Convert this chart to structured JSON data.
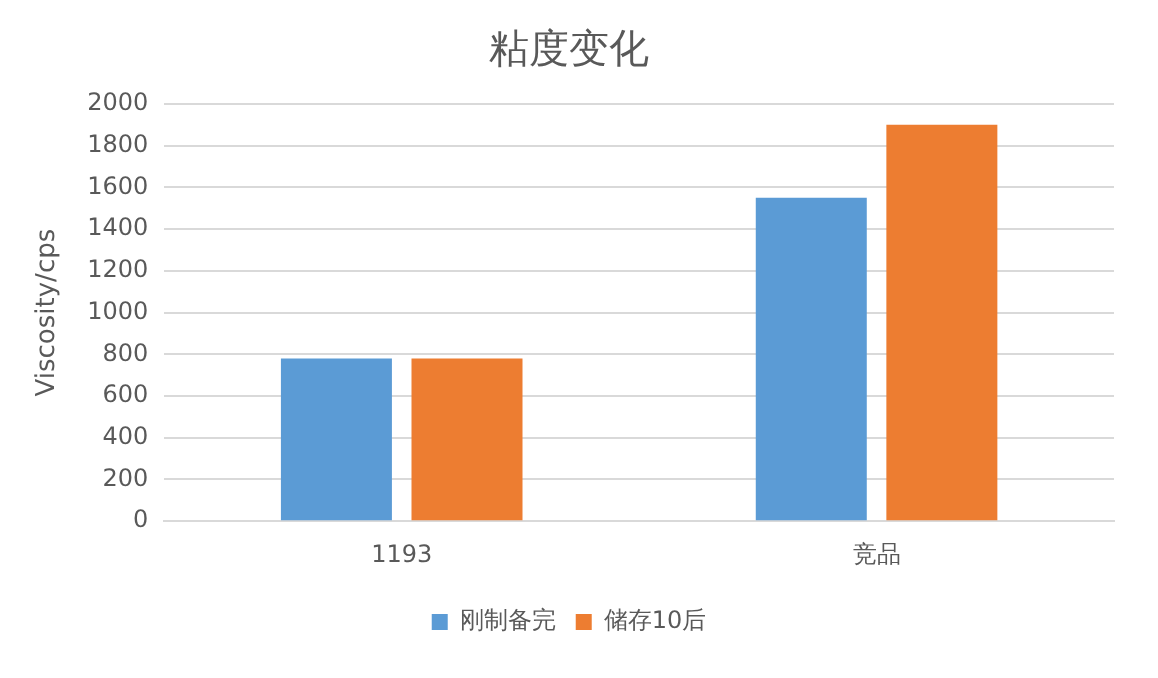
{
  "chart_data": {
    "type": "bar",
    "title": "粘度变化",
    "ylabel": "Viscosity/cps",
    "categories": [
      "1193",
      "竞品"
    ],
    "series": [
      {
        "name": "刚制备完",
        "color": "#5b9bd5",
        "values": [
          780,
          1550
        ]
      },
      {
        "name": "储存10后",
        "color": "#ed7d31",
        "values": [
          780,
          1900
        ]
      }
    ],
    "ylim": [
      0,
      2000
    ],
    "yticks": [
      0,
      200,
      400,
      600,
      800,
      1000,
      1200,
      1400,
      1600,
      1800,
      2000
    ],
    "grid": "y",
    "legend": "bottom"
  }
}
